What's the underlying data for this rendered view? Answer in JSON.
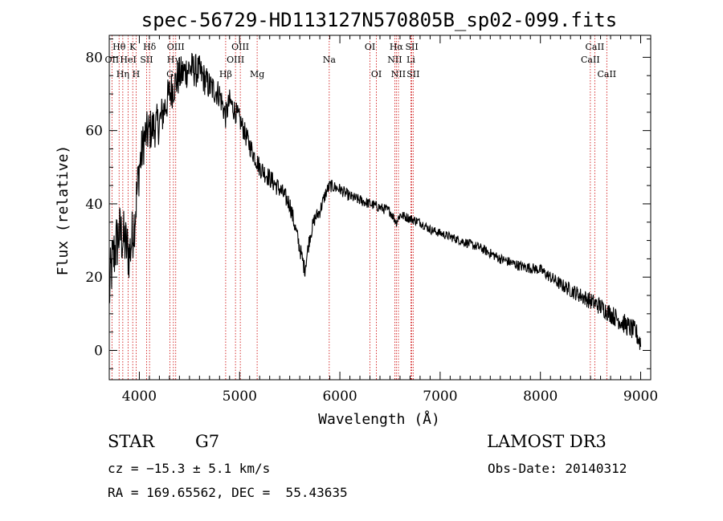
{
  "chart_data": {
    "type": "line",
    "title": "spec-56729-HD113127N570805B_sp02-099.fits",
    "xlabel": "Wavelength (Å)",
    "ylabel": "Flux (relative)",
    "xlim": [
      3700,
      9100
    ],
    "ylim": [
      -8,
      86
    ],
    "xticks": [
      4000,
      5000,
      6000,
      7000,
      8000,
      9000
    ],
    "yticks": [
      0,
      20,
      40,
      60,
      80
    ],
    "spectrum_anchors": [
      [
        3700,
        15
      ],
      [
        3720,
        22
      ],
      [
        3760,
        28
      ],
      [
        3800,
        32
      ],
      [
        3850,
        30
      ],
      [
        3900,
        26
      ],
      [
        3950,
        35
      ],
      [
        4000,
        50
      ],
      [
        4050,
        58
      ],
      [
        4100,
        60
      ],
      [
        4200,
        62
      ],
      [
        4300,
        70
      ],
      [
        4400,
        75
      ],
      [
        4500,
        77
      ],
      [
        4600,
        76
      ],
      [
        4700,
        72
      ],
      [
        4800,
        70
      ],
      [
        4860,
        64
      ],
      [
        4900,
        68
      ],
      [
        5000,
        63
      ],
      [
        5100,
        56
      ],
      [
        5200,
        50
      ],
      [
        5300,
        47
      ],
      [
        5400,
        44
      ],
      [
        5500,
        40
      ],
      [
        5600,
        28
      ],
      [
        5650,
        22
      ],
      [
        5700,
        31
      ],
      [
        5750,
        36
      ],
      [
        5800,
        38
      ],
      [
        5860,
        43
      ],
      [
        5900,
        45
      ],
      [
        6000,
        44
      ],
      [
        6100,
        42
      ],
      [
        6200,
        41
      ],
      [
        6300,
        40
      ],
      [
        6400,
        39
      ],
      [
        6500,
        38
      ],
      [
        6562,
        35
      ],
      [
        6600,
        37
      ],
      [
        6700,
        36
      ],
      [
        6800,
        35
      ],
      [
        6900,
        33
      ],
      [
        7000,
        32
      ],
      [
        7200,
        30
      ],
      [
        7400,
        28
      ],
      [
        7600,
        25
      ],
      [
        7800,
        23
      ],
      [
        8000,
        22
      ],
      [
        8200,
        18
      ],
      [
        8400,
        15
      ],
      [
        8600,
        12
      ],
      [
        8800,
        8
      ],
      [
        8950,
        5
      ],
      [
        9000,
        2
      ]
    ],
    "noise_amplitude_anchors": [
      [
        3700,
        9
      ],
      [
        3900,
        8
      ],
      [
        4100,
        6
      ],
      [
        4500,
        5
      ],
      [
        5000,
        3
      ],
      [
        5500,
        2.5
      ],
      [
        6000,
        1.6
      ],
      [
        7000,
        1.2
      ],
      [
        8000,
        1.5
      ],
      [
        8600,
        2.5
      ],
      [
        9000,
        3
      ]
    ],
    "spectral_lines": [
      {
        "name": "Hθ",
        "wavelength": 3798,
        "row": 1
      },
      {
        "name": "OII",
        "wavelength": 3727,
        "row": 2
      },
      {
        "name": "Hη",
        "wavelength": 3835,
        "row": 3
      },
      {
        "name": "HeI",
        "wavelength": 3889,
        "row": 2
      },
      {
        "name": "K",
        "wavelength": 3934,
        "row": 1
      },
      {
        "name": "SII",
        "wavelength": 4072,
        "row": 2
      },
      {
        "name": "H",
        "wavelength": 3968,
        "row": 3
      },
      {
        "name": "Hδ",
        "wavelength": 4102,
        "row": 1
      },
      {
        "name": "OIII",
        "wavelength": 4363,
        "row": 1
      },
      {
        "name": "Hγ",
        "wavelength": 4340,
        "row": 2
      },
      {
        "name": "G",
        "wavelength": 4305,
        "row": 3
      },
      {
        "name": "Hβ",
        "wavelength": 4861,
        "row": 3
      },
      {
        "name": "OIII",
        "wavelength": 5007,
        "row": 1
      },
      {
        "name": "OIII",
        "wavelength": 4959,
        "row": 2
      },
      {
        "name": "Mg",
        "wavelength": 5175,
        "row": 3
      },
      {
        "name": "Na",
        "wavelength": 5894,
        "row": 2
      },
      {
        "name": "OI",
        "wavelength": 6300,
        "row": 1
      },
      {
        "name": "OI",
        "wavelength": 6364,
        "row": 3
      },
      {
        "name": "Hα",
        "wavelength": 6563,
        "row": 1
      },
      {
        "name": "NII",
        "wavelength": 6548,
        "row": 2
      },
      {
        "name": "NII",
        "wavelength": 6584,
        "row": 3
      },
      {
        "name": "SII",
        "wavelength": 6717,
        "row": 1
      },
      {
        "name": "Li",
        "wavelength": 6708,
        "row": 2
      },
      {
        "name": "SII",
        "wavelength": 6731,
        "row": 3
      },
      {
        "name": "CaII",
        "wavelength": 8542,
        "row": 1
      },
      {
        "name": "CaII",
        "wavelength": 8498,
        "row": 2
      },
      {
        "name": "CaII",
        "wavelength": 8662,
        "row": 3
      }
    ],
    "line_marker_color": "#cc0000",
    "spectrum_color": "#000000"
  },
  "info": {
    "object_class": "STAR",
    "subclass": "G7",
    "survey": "LAMOST DR3",
    "redshift_text": "cz = −15.3 ± 5.1 km/s",
    "obs_date_text": "Obs-Date: 20140312",
    "coords_text": "RA = 169.65562, DEC =  55.43635"
  }
}
